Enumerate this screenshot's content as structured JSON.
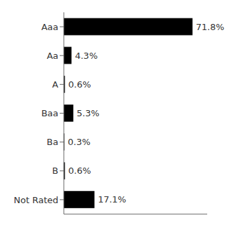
{
  "chart_data": {
    "type": "bar",
    "orientation": "horizontal",
    "categories": [
      "Aaa",
      "Aa",
      "A",
      "Baa",
      "Ba",
      "B",
      "Not Rated"
    ],
    "values": [
      71.8,
      4.3,
      0.6,
      5.3,
      0.3,
      0.6,
      17.1
    ],
    "value_labels": [
      "71.8%",
      "4.3%",
      "0.6%",
      "5.3%",
      "0.3%",
      "0.6%",
      "17.1%"
    ],
    "data_labels": true,
    "color": "#000000",
    "xlim": [
      0,
      80
    ],
    "tick_labels": "y",
    "grid": false
  }
}
